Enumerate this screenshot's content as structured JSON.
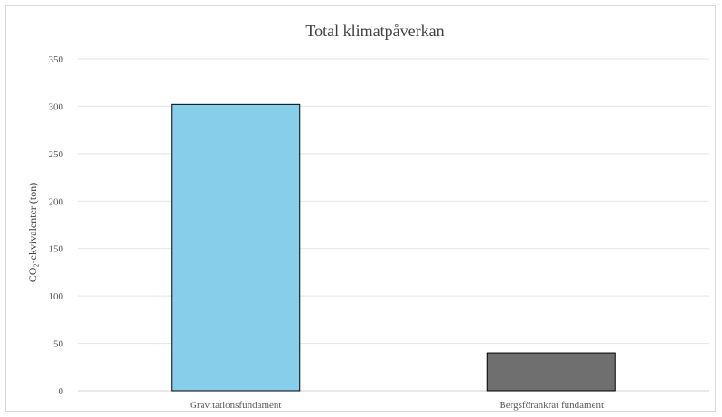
{
  "chart_data": {
    "type": "bar",
    "title": "Total klimatpåverkan",
    "ylabel": "CO₂-ekvivalenter (ton)",
    "xlabel": "",
    "categories": [
      "Gravitationsfundament",
      "Bergsförankrat fundament"
    ],
    "values": [
      302,
      40
    ],
    "bar_colors": [
      "#87CEEB",
      "#6F6F6F"
    ],
    "ylim": [
      0,
      350
    ],
    "yticks": [
      0,
      50,
      100,
      150,
      200,
      250,
      300,
      350
    ],
    "grid": true,
    "legend": "none"
  }
}
